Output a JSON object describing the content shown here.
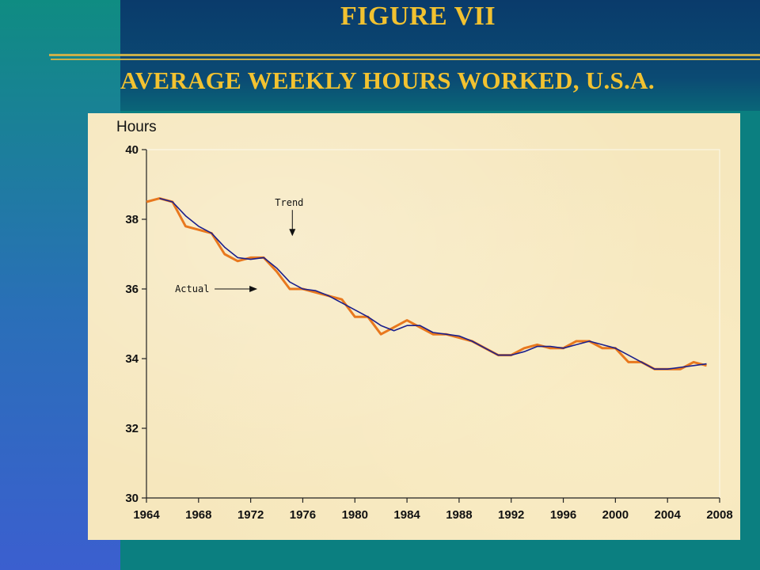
{
  "header": {
    "figure_title": "FIGURE VII",
    "subtitle": "AVERAGE WEEKLY HOURS WORKED, U.S.A."
  },
  "colors": {
    "actual": "#e8781e",
    "trend": "#1a1f8c",
    "title": "#f2c230"
  },
  "chart_data": {
    "type": "line",
    "title": "",
    "xlabel": "",
    "ylabel": "Hours",
    "xlim": [
      1964,
      2008
    ],
    "ylim": [
      30,
      40
    ],
    "xticks": [
      1964,
      1968,
      1972,
      1976,
      1980,
      1984,
      1988,
      1992,
      1996,
      2000,
      2004,
      2008
    ],
    "xtick_labels": [
      "1964",
      "1968",
      "1972",
      "1976",
      "1980",
      "1984",
      "1988",
      "1992",
      "1996",
      "2000",
      "2004",
      "2008"
    ],
    "yticks": [
      30,
      32,
      34,
      36,
      38,
      40
    ],
    "ytick_labels": [
      "30",
      "32",
      "34",
      "36",
      "38",
      "40"
    ],
    "x": [
      1964,
      1965,
      1966,
      1967,
      1968,
      1969,
      1970,
      1971,
      1972,
      1973,
      1974,
      1975,
      1976,
      1977,
      1978,
      1979,
      1980,
      1981,
      1982,
      1983,
      1984,
      1985,
      1986,
      1987,
      1988,
      1989,
      1990,
      1991,
      1992,
      1993,
      1994,
      1995,
      1996,
      1997,
      1998,
      1999,
      2000,
      2001,
      2002,
      2003,
      2004,
      2005,
      2006,
      2007
    ],
    "series": [
      {
        "name": "Actual",
        "values": [
          38.5,
          38.6,
          38.5,
          37.8,
          37.7,
          37.6,
          37.0,
          36.8,
          36.9,
          36.9,
          36.5,
          36.0,
          36.0,
          35.9,
          35.8,
          35.7,
          35.2,
          35.2,
          34.7,
          34.9,
          35.1,
          34.9,
          34.7,
          34.7,
          34.6,
          34.5,
          34.3,
          34.1,
          34.1,
          34.3,
          34.4,
          34.3,
          34.3,
          34.5,
          34.5,
          34.3,
          34.3,
          33.9,
          33.9,
          33.7,
          33.7,
          33.7,
          33.9,
          33.8
        ]
      },
      {
        "name": "Trend",
        "values": [
          null,
          38.6,
          38.5,
          38.1,
          37.8,
          37.6,
          37.2,
          36.9,
          36.85,
          36.9,
          36.6,
          36.2,
          36.0,
          35.95,
          35.8,
          35.6,
          35.4,
          35.2,
          34.95,
          34.8,
          34.95,
          34.95,
          34.75,
          34.7,
          34.65,
          34.5,
          34.3,
          34.1,
          34.1,
          34.2,
          34.35,
          34.35,
          34.3,
          34.4,
          34.5,
          34.4,
          34.3,
          34.1,
          33.9,
          33.7,
          33.7,
          33.75,
          33.8,
          33.85
        ]
      }
    ],
    "annotations": [
      {
        "text": "Trend",
        "x": 1975.2,
        "y": 37.45
      },
      {
        "text": "Actual",
        "x": 1973.0,
        "y": 36.0
      }
    ],
    "grid": false,
    "legend": "none"
  }
}
